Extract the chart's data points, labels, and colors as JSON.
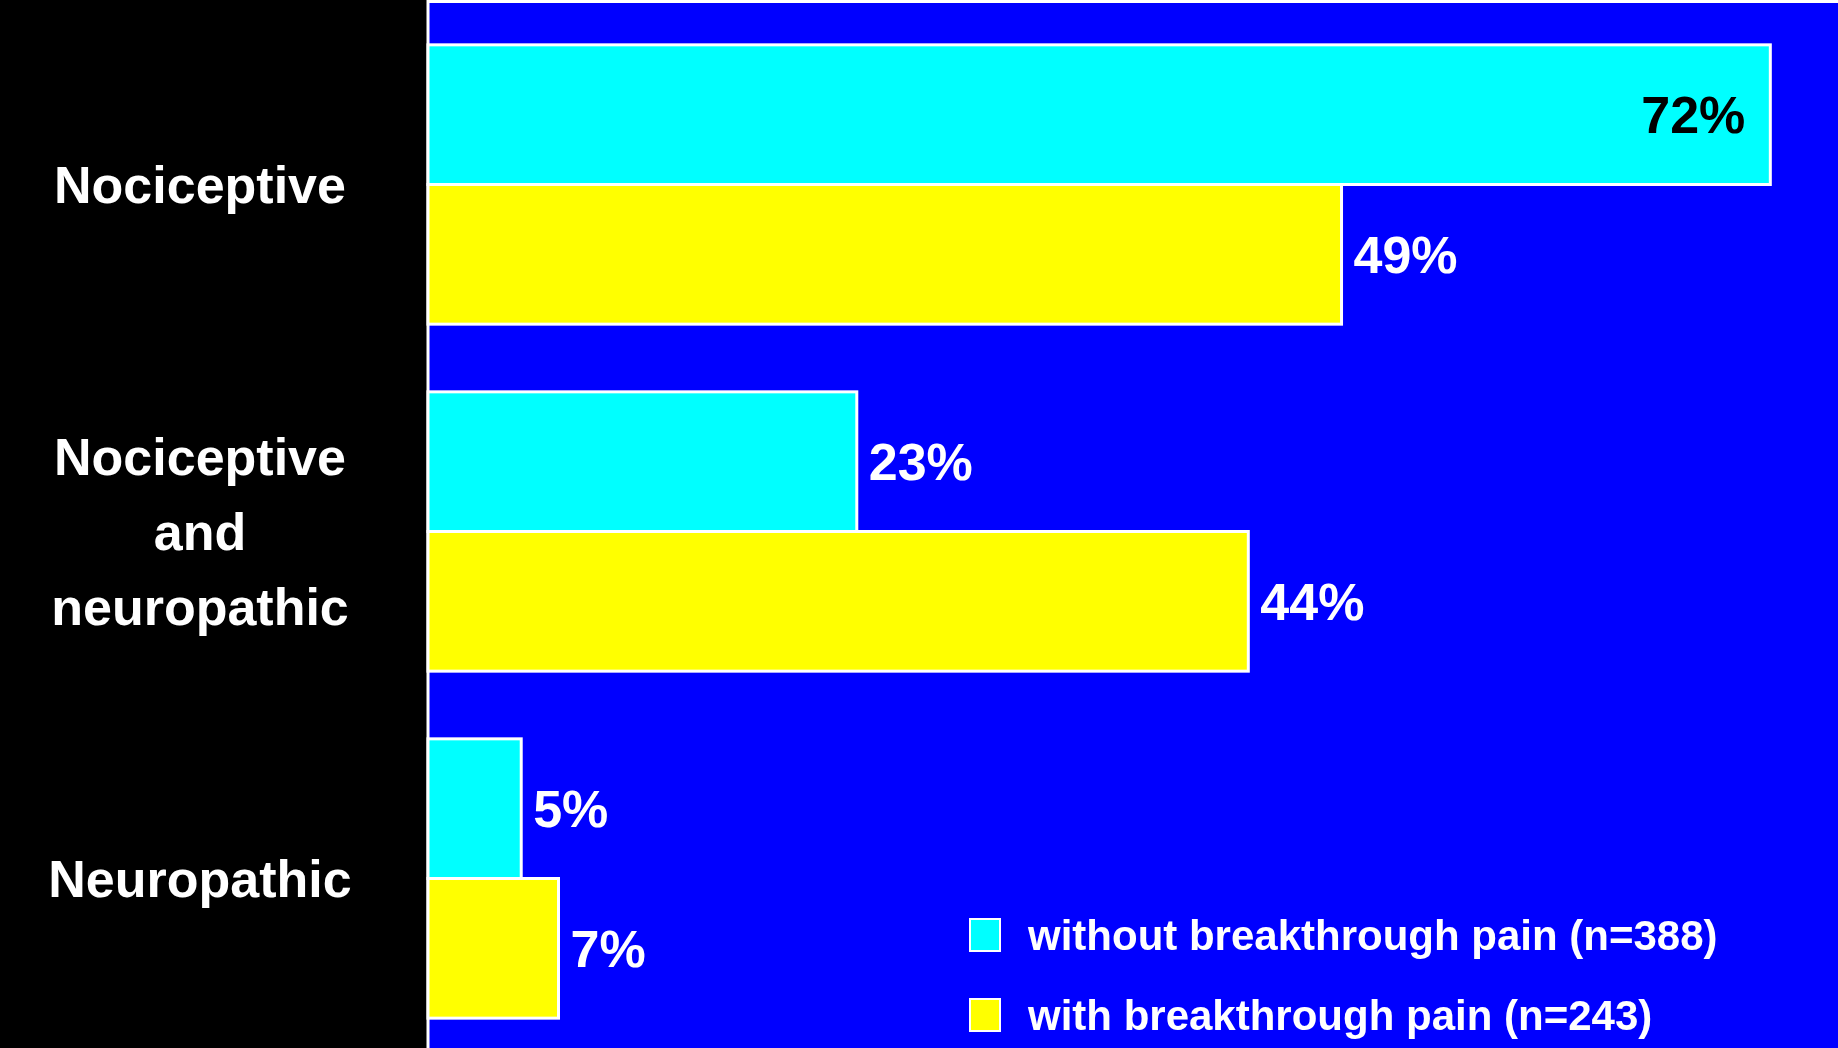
{
  "chart_data": {
    "type": "bar",
    "orientation": "horizontal",
    "categories": [
      "Nociceptive",
      "Nociceptive and neuropathic",
      "Neuropathic"
    ],
    "series": [
      {
        "name": "without breakthrough pain (n=388)",
        "color": "#00ffff",
        "values": [
          72,
          23,
          5
        ],
        "value_labels": [
          "72%",
          "23%",
          "5%"
        ]
      },
      {
        "name": "with breakthrough pain (n=243)",
        "color": "#ffff00",
        "values": [
          49,
          44,
          7
        ],
        "value_labels": [
          "49%",
          "44%",
          "7%"
        ]
      }
    ],
    "legend": "bottom right"
  }
}
